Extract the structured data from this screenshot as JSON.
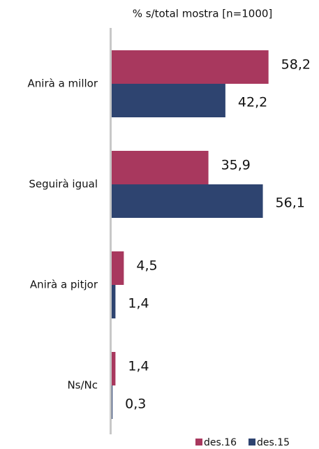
{
  "chart_data": {
    "type": "bar",
    "orientation": "horizontal",
    "title": "% s/total mostra [n=1000]",
    "categories": [
      "Anirà a millor",
      "Seguirà  igual",
      "Anirà a pitjor",
      "Ns/Nc"
    ],
    "series": [
      {
        "name": "des.16",
        "color": "#a8385e",
        "values": [
          58.2,
          35.9,
          4.5,
          1.4
        ],
        "value_labels": [
          "58,2",
          "35,9",
          "4,5",
          "1,4"
        ]
      },
      {
        "name": "des.15",
        "color": "#2e4470",
        "values": [
          42.2,
          56.1,
          1.4,
          0.3
        ],
        "value_labels": [
          "42,2",
          "56,1",
          "1,4",
          "0,3"
        ]
      }
    ],
    "legend": "bottom-right"
  }
}
